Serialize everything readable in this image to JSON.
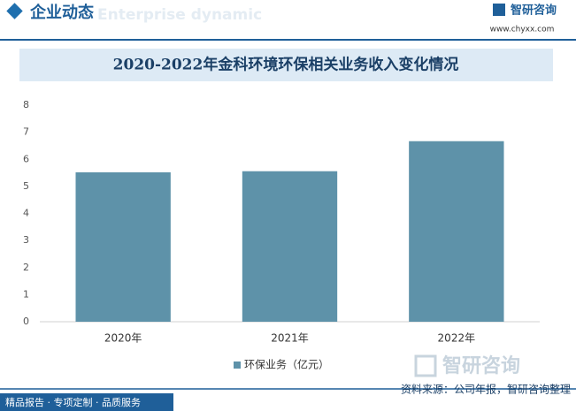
{
  "header": {
    "section": "企业动态",
    "watermark": "Enterprise dynamic",
    "brand": "智研咨询",
    "url": "www.chyxx.com"
  },
  "chart_data": {
    "type": "bar",
    "title": "2020-2022年金科环境环保相关业务收入变化情况",
    "categories": [
      "2020年",
      "2021年",
      "2022年"
    ],
    "series": [
      {
        "name": "环保业务（亿元）",
        "color": "#5e92a9",
        "values": [
          5.52,
          5.56,
          6.67
        ]
      }
    ],
    "ylim": [
      0,
      8
    ],
    "yticks": [
      0,
      1,
      2,
      3,
      4,
      5,
      6,
      7,
      8
    ],
    "grid": false,
    "legend": "bottom"
  },
  "footer": {
    "slogan": "精品报告 · 专项定制 · 品质服务",
    "source": "资料来源：公司年报，智研咨询整理",
    "brand": "智研咨询"
  }
}
